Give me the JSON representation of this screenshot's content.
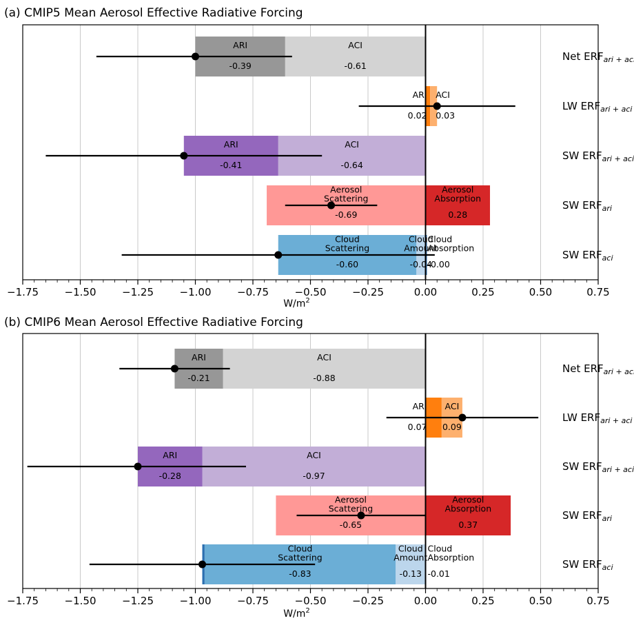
{
  "x_axis": {
    "ticks": [
      "−1.75",
      "−1.50",
      "−1.25",
      "−1.00",
      "−0.75",
      "−0.50",
      "−0.25",
      "0.00",
      "0.25",
      "0.50",
      "0.75"
    ],
    "label_base": "W/m",
    "label_sup": "2"
  },
  "colors": {
    "aci_net": "#d3d3d3",
    "ari_net": "#979797",
    "ari_lw": "#ff7f0e",
    "aci_lw": "#fdb06e",
    "aci_sw": "#c2aed7",
    "ari_sw": "#9467bd",
    "scat_ari": "#ff9896",
    "abs_ari": "#d62728",
    "amount_aci": "#bcd6ec",
    "scat_aci": "#6baed6",
    "abs_aci": "#2b6fb0",
    "whisker": "#000000",
    "grid": "#c8c8c8"
  },
  "chart_data": [
    {
      "type": "bar",
      "orientation": "horizontal-stacked",
      "title": "(a) CMIP5 Mean Aerosol Effective Radiative Forcing",
      "xlabel": "W/m²",
      "xlim": [
        -1.75,
        0.75
      ],
      "grid": "x",
      "rows": [
        {
          "label_main": "Net ERF",
          "label_sub": "ari + aci",
          "segments": [
            {
              "name": "ACI",
              "value": -0.61,
              "value_text": "-0.61",
              "color_key": "aci_net"
            },
            {
              "name": "ARI",
              "value": -0.39,
              "value_text": "-0.39",
              "color_key": "ari_net"
            }
          ],
          "mean": -1.0,
          "whisker": [
            -1.43,
            -0.58
          ]
        },
        {
          "label_main": "LW ERF",
          "label_sub": "ari + aci",
          "segments": [
            {
              "name": "ARI",
              "value": 0.02,
              "value_text": "0.02",
              "color_key": "ari_lw"
            },
            {
              "name": "ACI",
              "value": 0.03,
              "value_text": "0.03",
              "color_key": "aci_lw"
            }
          ],
          "mean": 0.05,
          "whisker": [
            -0.29,
            0.39
          ]
        },
        {
          "label_main": "SW ERF",
          "label_sub": "ari + aci",
          "segments": [
            {
              "name": "ACI",
              "value": -0.64,
              "value_text": "-0.64",
              "color_key": "aci_sw"
            },
            {
              "name": "ARI",
              "value": -0.41,
              "value_text": "-0.41",
              "color_key": "ari_sw"
            }
          ],
          "mean": -1.05,
          "whisker": [
            -1.65,
            -0.45
          ]
        },
        {
          "label_main": "SW ERF",
          "label_sub": "ari",
          "segments": [
            {
              "name": "Aerosol\nScattering",
              "value": -0.69,
              "value_text": "-0.69",
              "color_key": "scat_ari"
            },
            {
              "name": "Aerosol\nAbsorption",
              "value": 0.28,
              "value_text": "0.28",
              "color_key": "abs_ari"
            }
          ],
          "mean": -0.41,
          "whisker": [
            -0.61,
            -0.21
          ]
        },
        {
          "label_main": "SW ERF",
          "label_sub": "aci",
          "segments": [
            {
              "name": "Cloud\nAmount",
              "value": -0.04,
              "value_text": "-0.04",
              "color_key": "amount_aci"
            },
            {
              "name": "Cloud\nScattering",
              "value": -0.6,
              "value_text": "-0.60",
              "color_key": "scat_aci"
            },
            {
              "name": "Cloud\nAbsorption",
              "value": 0.0,
              "value_text": "-0.00",
              "color_key": "abs_aci"
            }
          ],
          "mean": -0.64,
          "whisker": [
            -1.32,
            0.04
          ]
        }
      ]
    },
    {
      "type": "bar",
      "orientation": "horizontal-stacked",
      "title": "(b) CMIP6 Mean Aerosol Effective Radiative Forcing",
      "xlabel": "W/m²",
      "xlim": [
        -1.75,
        0.75
      ],
      "grid": "x",
      "rows": [
        {
          "label_main": "Net ERF",
          "label_sub": "ari + aci",
          "segments": [
            {
              "name": "ACI",
              "value": -0.88,
              "value_text": "-0.88",
              "color_key": "aci_net"
            },
            {
              "name": "ARI",
              "value": -0.21,
              "value_text": "-0.21",
              "color_key": "ari_net"
            }
          ],
          "mean": -1.09,
          "whisker": [
            -1.33,
            -0.85
          ]
        },
        {
          "label_main": "LW ERF",
          "label_sub": "ari + aci",
          "segments": [
            {
              "name": "ARI",
              "value": 0.07,
              "value_text": "0.07",
              "color_key": "ari_lw"
            },
            {
              "name": "ACI",
              "value": 0.09,
              "value_text": "0.09",
              "color_key": "aci_lw"
            }
          ],
          "mean": 0.16,
          "whisker": [
            -0.17,
            0.49
          ]
        },
        {
          "label_main": "SW ERF",
          "label_sub": "ari + aci",
          "segments": [
            {
              "name": "ACI",
              "value": -0.97,
              "value_text": "-0.97",
              "color_key": "aci_sw"
            },
            {
              "name": "ARI",
              "value": -0.28,
              "value_text": "-0.28",
              "color_key": "ari_sw"
            }
          ],
          "mean": -1.25,
          "whisker": [
            -1.73,
            -0.78
          ]
        },
        {
          "label_main": "SW ERF",
          "label_sub": "ari",
          "segments": [
            {
              "name": "Aerosol\nScattering",
              "value": -0.65,
              "value_text": "-0.65",
              "color_key": "scat_ari"
            },
            {
              "name": "Aerosol\nAbsorption",
              "value": 0.37,
              "value_text": "0.37",
              "color_key": "abs_ari"
            }
          ],
          "mean": -0.28,
          "whisker": [
            -0.56,
            0.0
          ]
        },
        {
          "label_main": "SW ERF",
          "label_sub": "aci",
          "segments": [
            {
              "name": "Cloud\nAmount",
              "value": -0.13,
              "value_text": "-0.13",
              "color_key": "amount_aci"
            },
            {
              "name": "Cloud\nScattering",
              "value": -0.83,
              "value_text": "-0.83",
              "color_key": "scat_aci"
            },
            {
              "name": "Cloud\nAbsorption",
              "value": -0.01,
              "value_text": "-0.01",
              "color_key": "abs_aci"
            }
          ],
          "mean": -0.97,
          "whisker": [
            -1.46,
            -0.48
          ]
        }
      ]
    }
  ]
}
